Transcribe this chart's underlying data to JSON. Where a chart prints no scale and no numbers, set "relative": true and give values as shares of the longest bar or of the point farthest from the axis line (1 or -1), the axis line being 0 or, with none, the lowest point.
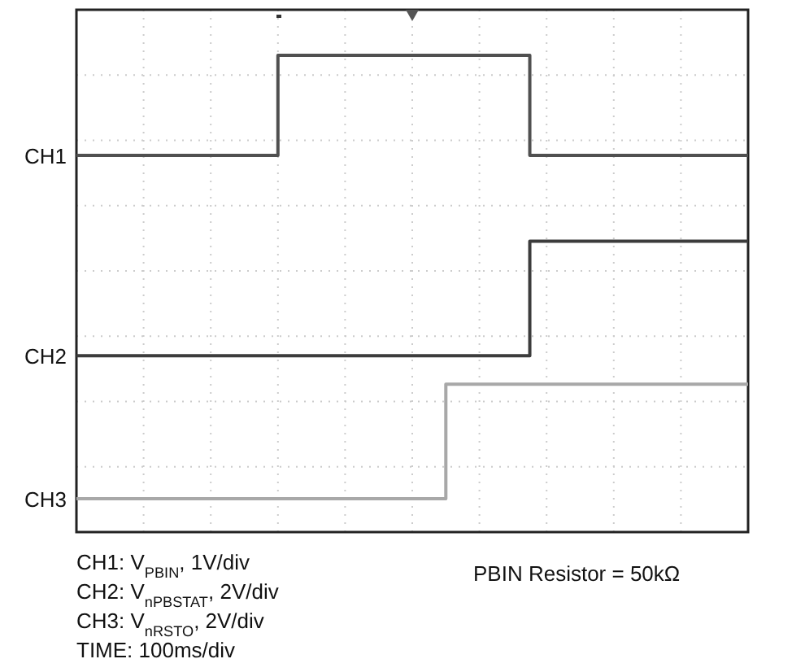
{
  "chart_data": {
    "type": "step",
    "relative": true,
    "grid": true,
    "legend": false,
    "marker": "none",
    "line_style": "solid",
    "categories": [
      null,
      null,
      null,
      null,
      null,
      null,
      null,
      null,
      null,
      null,
      null,
      null,
      null,
      null,
      null,
      null,
      null,
      null,
      null,
      null,
      null,
      null,
      null,
      null,
      null,
      null,
      null,
      null,
      null,
      null,
      null,
      null,
      null,
      null,
      null,
      null,
      null,
      null,
      null,
      null,
      null
    ],
    "series": [
      {
        "name": "CH1",
        "color": "#505050",
        "values": [
          0.79,
          0.79,
          0.79,
          0.79,
          0.79,
          0.79,
          0.79,
          0.79,
          0.79,
          0.79,
          0.79,
          0.79,
          1,
          1,
          1,
          1,
          1,
          1,
          1,
          1,
          1,
          1,
          1,
          1,
          1,
          1,
          1,
          0.79,
          0.79,
          0.79,
          0.79,
          0.79,
          0.79,
          0.79,
          0.79,
          0.79,
          0.79,
          0.79,
          0.79,
          0.79,
          0.79
        ]
      },
      {
        "name": "CH2",
        "color": "#3c3c3c",
        "values": [
          0.37,
          0.37,
          0.37,
          0.37,
          0.37,
          0.37,
          0.37,
          0.37,
          0.37,
          0.37,
          0.37,
          0.37,
          0.37,
          0.37,
          0.37,
          0.37,
          0.37,
          0.37,
          0.37,
          0.37,
          0.37,
          0.37,
          0.37,
          0.37,
          0.37,
          0.37,
          0.37,
          0.61,
          0.61,
          0.61,
          0.61,
          0.61,
          0.61,
          0.61,
          0.61,
          0.61,
          0.61,
          0.61,
          0.61,
          0.61,
          0.61
        ]
      },
      {
        "name": "CH3",
        "color": "#a8a8a8",
        "values": [
          0.07,
          0.07,
          0.07,
          0.07,
          0.07,
          0.07,
          0.07,
          0.07,
          0.07,
          0.07,
          0.07,
          0.07,
          0.07,
          0.07,
          0.07,
          0.07,
          0.07,
          0.07,
          0.07,
          0.07,
          0.07,
          0.07,
          0.31,
          0.31,
          0.31,
          0.31,
          0.31,
          0.31,
          0.31,
          0.31,
          0.31,
          0.31,
          0.31,
          0.31,
          0.31,
          0.31,
          0.31,
          0.31,
          0.31,
          0.31,
          0.31
        ]
      }
    ],
    "annotations": [
      "CH1: V$_{PBIN}$, 1V/div",
      "CH2: V$_{nPBSTAT}$, 2V/div",
      "CH3: V$_{nRSTO}$, 2V/div",
      "TIME: 100ms/div",
      "PBIN Resistor = 50kΩ"
    ]
  }
}
